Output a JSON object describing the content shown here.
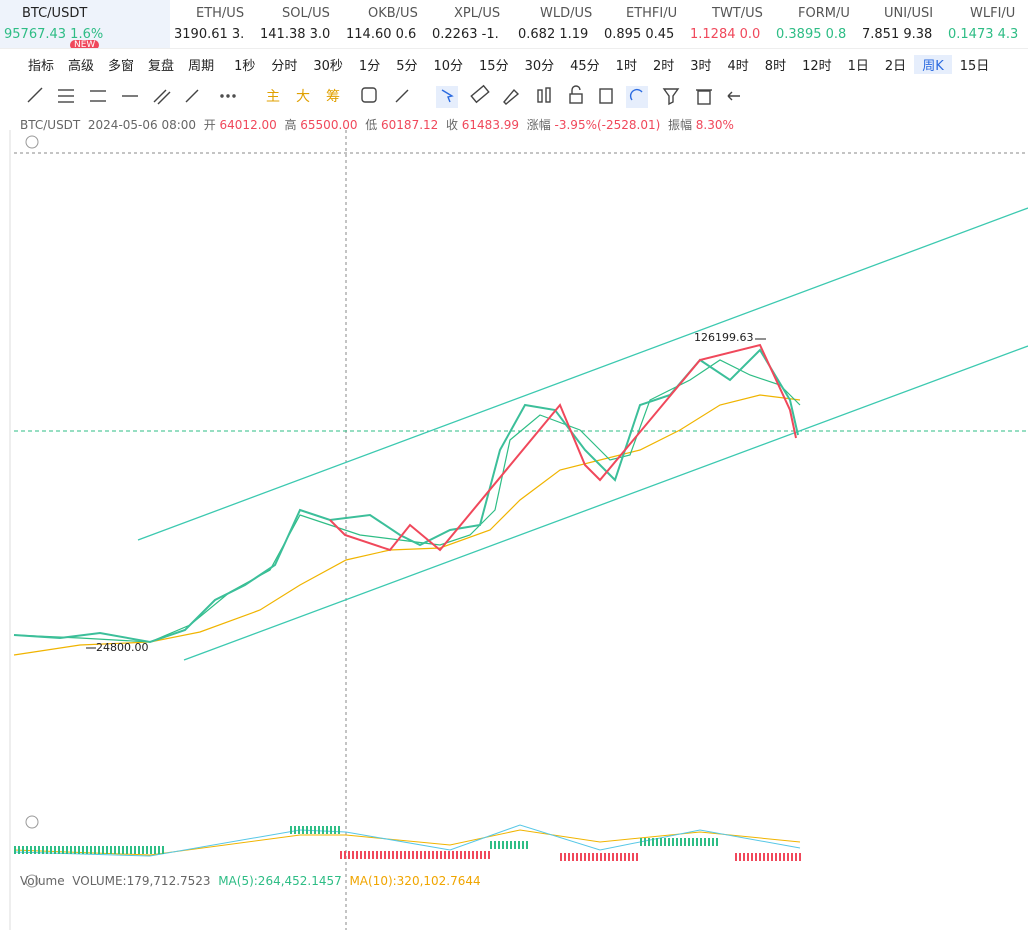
{
  "tickers": [
    {
      "symbol": "BTC/USDT",
      "price": "95767.43",
      "change": "1.6%",
      "badge": "NEW"
    },
    {
      "symbol": "ETH/US",
      "price": "3190.61",
      "change": "3."
    },
    {
      "symbol": "SOL/US",
      "price": "141.38",
      "change": "3.0"
    },
    {
      "symbol": "OKB/US",
      "price": "114.60",
      "change": "0.6"
    },
    {
      "symbol": "XPL/US",
      "price": "0.2263",
      "change": "-1."
    },
    {
      "symbol": "WLD/US",
      "price": "0.682",
      "change": "1.19"
    },
    {
      "symbol": "ETHFI/U",
      "price": "0.895",
      "change": "0.45"
    },
    {
      "symbol": "TWT/US",
      "price": "1.1284",
      "change": "0.0"
    },
    {
      "symbol": "FORM/U",
      "price": "0.3895",
      "change": "0.8"
    },
    {
      "symbol": "UNI/USI",
      "price": "7.851",
      "change": "9.38"
    },
    {
      "symbol": "WLFI/U",
      "price": "0.1473",
      "change": "4.3"
    }
  ],
  "toolbar": {
    "buttons": [
      "指标",
      "高级",
      "多窗",
      "复盘",
      "周期"
    ],
    "intervals": [
      "1秒",
      "分时",
      "30秒",
      "1分",
      "5分",
      "10分",
      "15分",
      "30分",
      "45分",
      "1时",
      "2时",
      "3时",
      "4时",
      "8时",
      "12时",
      "1日",
      "2日",
      "周K",
      "15日"
    ],
    "selected": "周K"
  },
  "drawing_tools": [
    "主",
    "大",
    "筹"
  ],
  "info": {
    "symbol": "BTC/USDT",
    "time": "2024-05-06 08:00",
    "open_label": "开",
    "open": "64012.00",
    "high_label": "高",
    "high": "65500.00",
    "low_label": "低",
    "low": "60187.12",
    "close_label": "收",
    "close": "61483.99",
    "change_label": "涨幅",
    "change": "-3.95%(-2528.01)",
    "amplitude_label": "振幅",
    "amplitude": "8.30%"
  },
  "chart_labels": {
    "max": "126199.63",
    "min": "24800.00"
  },
  "volume": {
    "name": "Volume",
    "volume": "VOLUME:179,712.7523",
    "ma5": "MA(5):264,452.1457",
    "ma10": "MA(10):320,102.7644"
  }
}
